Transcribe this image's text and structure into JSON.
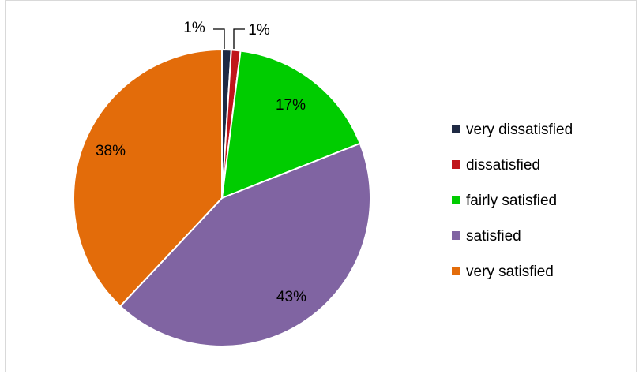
{
  "chart_data": {
    "type": "pie",
    "title": "",
    "legend_position": "right",
    "slices": [
      {
        "name": "very dissatisfied",
        "value": 1,
        "label": "1%",
        "color": "#1f2a44"
      },
      {
        "name": "dissatisfied",
        "value": 1,
        "label": "1%",
        "color": "#c0151b"
      },
      {
        "name": "fairly satisfied",
        "value": 17,
        "label": "17%",
        "color": "#00cc00"
      },
      {
        "name": "satisfied",
        "value": 43,
        "label": "43%",
        "color": "#8064a2"
      },
      {
        "name": "very satisfied",
        "value": 38,
        "label": "38%",
        "color": "#e36c0a"
      }
    ]
  }
}
